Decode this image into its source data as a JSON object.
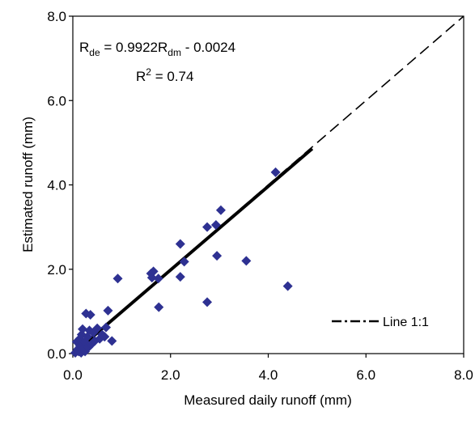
{
  "chart_data": {
    "type": "scatter",
    "xlabel": "Measured daily runoff (mm)",
    "ylabel": "Estimated runoff (mm)",
    "xlim": [
      0,
      8
    ],
    "ylim": [
      0,
      8
    ],
    "xticks": [
      "0.0",
      "2.0",
      "4.0",
      "6.0",
      "8.0"
    ],
    "yticks": [
      "0.0",
      "2.0",
      "4.0",
      "6.0",
      "8.0"
    ],
    "grid": false,
    "marker_color": "#2E3192",
    "regression": {
      "slope": 0.9922,
      "intercept": -0.0024,
      "x_range": [
        0,
        4.9
      ],
      "color": "#000000",
      "equation": {
        "lhs": "R",
        "lhs_sub": "de",
        "mid": " = 0.9922R",
        "mid_sub": "dm",
        "rest": " - 0.0024"
      },
      "r2": {
        "base": "R",
        "sup": "2",
        "rest": " = 0.74"
      }
    },
    "reference_line": {
      "label": "Line 1:1",
      "from": [
        0,
        0
      ],
      "to": [
        8,
        8
      ],
      "style": "dashed"
    },
    "legend_position": "bottom-right",
    "points": [
      {
        "x": 0.05,
        "y": 0.02
      },
      {
        "x": 0.08,
        "y": 0.28
      },
      {
        "x": 0.1,
        "y": 0.1
      },
      {
        "x": 0.12,
        "y": 0.05
      },
      {
        "x": 0.14,
        "y": 0.35
      },
      {
        "x": 0.15,
        "y": 0.18
      },
      {
        "x": 0.17,
        "y": 0.02
      },
      {
        "x": 0.18,
        "y": 0.45
      },
      {
        "x": 0.2,
        "y": 0.58
      },
      {
        "x": 0.22,
        "y": 0.12
      },
      {
        "x": 0.24,
        "y": 0.28
      },
      {
        "x": 0.25,
        "y": 0.05
      },
      {
        "x": 0.27,
        "y": 0.95
      },
      {
        "x": 0.3,
        "y": 0.4
      },
      {
        "x": 0.32,
        "y": 0.15
      },
      {
        "x": 0.34,
        "y": 0.55
      },
      {
        "x": 0.36,
        "y": 0.92
      },
      {
        "x": 0.38,
        "y": 0.22
      },
      {
        "x": 0.42,
        "y": 0.5
      },
      {
        "x": 0.45,
        "y": 0.3
      },
      {
        "x": 0.5,
        "y": 0.6
      },
      {
        "x": 0.55,
        "y": 0.35
      },
      {
        "x": 0.6,
        "y": 0.45
      },
      {
        "x": 0.65,
        "y": 0.4
      },
      {
        "x": 0.68,
        "y": 0.62
      },
      {
        "x": 0.72,
        "y": 1.02
      },
      {
        "x": 0.8,
        "y": 0.3
      },
      {
        "x": 0.92,
        "y": 1.78
      },
      {
        "x": 1.6,
        "y": 1.9
      },
      {
        "x": 1.62,
        "y": 1.8
      },
      {
        "x": 1.65,
        "y": 1.95
      },
      {
        "x": 1.75,
        "y": 1.78
      },
      {
        "x": 1.76,
        "y": 1.1
      },
      {
        "x": 2.2,
        "y": 2.6
      },
      {
        "x": 2.2,
        "y": 1.82
      },
      {
        "x": 2.28,
        "y": 2.18
      },
      {
        "x": 2.75,
        "y": 1.22
      },
      {
        "x": 2.75,
        "y": 3.0
      },
      {
        "x": 2.93,
        "y": 3.05
      },
      {
        "x": 2.95,
        "y": 2.32
      },
      {
        "x": 3.03,
        "y": 3.4
      },
      {
        "x": 3.55,
        "y": 2.2
      },
      {
        "x": 4.15,
        "y": 4.3
      },
      {
        "x": 4.4,
        "y": 1.6
      }
    ]
  }
}
